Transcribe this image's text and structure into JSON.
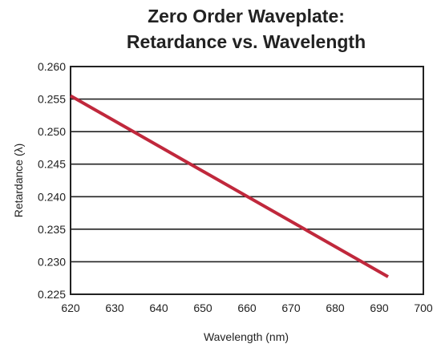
{
  "chart_data": {
    "type": "line",
    "title_lines": [
      "Zero Order Waveplate:",
      "Retardance vs. Wavelength"
    ],
    "xlabel": "Wavelength (nm)",
    "ylabel": "Retardance (λ)",
    "xlim": [
      620,
      700
    ],
    "ylim": [
      0.225,
      0.26
    ],
    "x_ticks": [
      "620",
      "630",
      "640",
      "650",
      "660",
      "670",
      "680",
      "690",
      "700"
    ],
    "y_ticks": [
      "0.225",
      "0.230",
      "0.235",
      "0.240",
      "0.245",
      "0.250",
      "0.255",
      "0.260"
    ],
    "grid": "horizontal",
    "legend": "none",
    "series": [
      {
        "x": [
          620,
          692
        ],
        "y": [
          0.2555,
          0.2277
        ],
        "color": "#c0283c"
      }
    ]
  }
}
